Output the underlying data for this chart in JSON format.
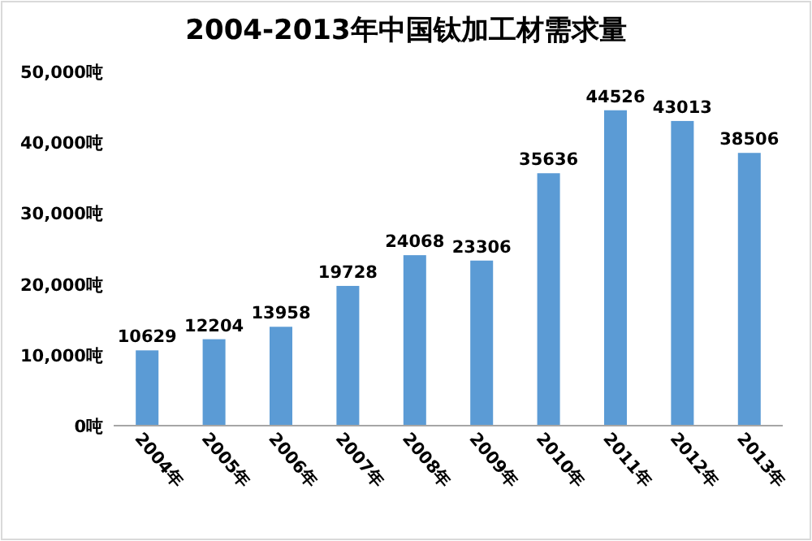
{
  "chart_data": {
    "type": "bar",
    "title": "2004-2013年中国钛加工材需求量",
    "categories": [
      "2004年",
      "2005年",
      "2006年",
      "2007年",
      "2008年",
      "2009年",
      "2010年",
      "2011年",
      "2012年",
      "2013年"
    ],
    "values": [
      10629,
      12204,
      13958,
      19728,
      24068,
      23306,
      35636,
      44526,
      43013,
      38506
    ],
    "color": "#5b9bd5",
    "data_labels": true,
    "ylim": [
      0,
      50000
    ],
    "yticks": [
      {
        "value": 0,
        "label": "0吨"
      },
      {
        "value": 10000,
        "label": "10,000吨"
      },
      {
        "value": 20000,
        "label": "20,000吨"
      },
      {
        "value": 30000,
        "label": "30,000吨"
      },
      {
        "value": 40000,
        "label": "40,000吨"
      },
      {
        "value": 50000,
        "label": "50,000吨"
      }
    ]
  }
}
